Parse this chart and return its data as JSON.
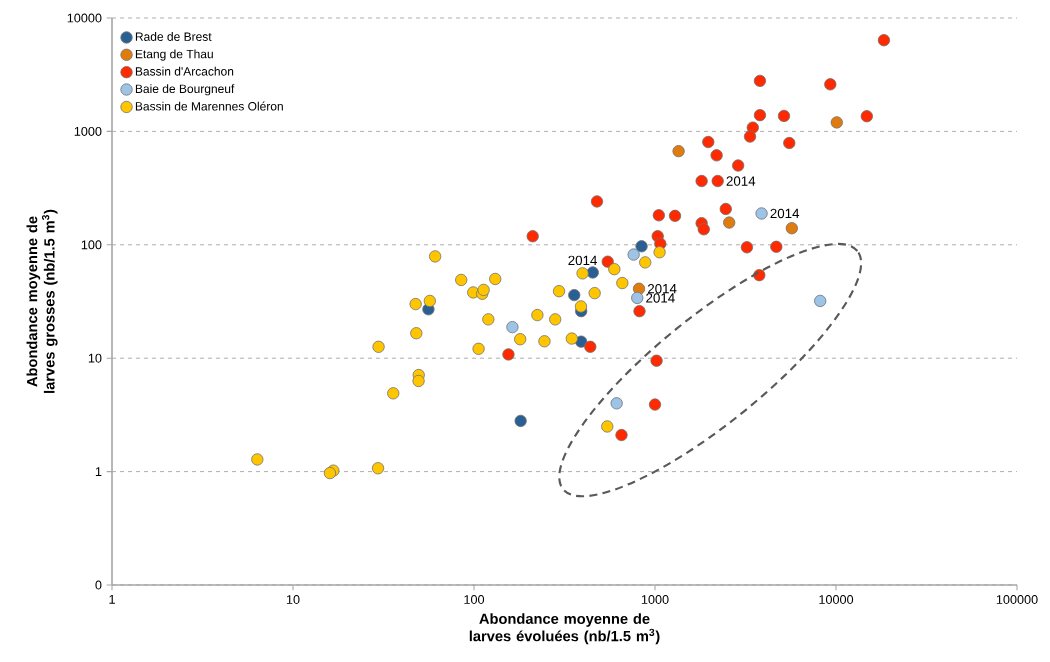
{
  "chart_data": {
    "type": "scatter",
    "xlabel": "Abondance moyenne de larves évoluées (nb/1.5 m$^{3}$)",
    "ylabel": "Abondance moyenne de larves grosses (nb/1.5 m$^{3}$)",
    "log": "xy",
    "grid": "y",
    "legend": "top left",
    "marker": "circle",
    "xlim": [
      1,
      100000
    ],
    "xticks": [
      1,
      10,
      100,
      1000,
      10000,
      100000
    ],
    "ylim": [
      0.1,
      10000
    ],
    "yticks": [
      {
        "value": 0.1,
        "label": "0"
      },
      1,
      10,
      100,
      1000,
      10000
    ],
    "series": [
      {
        "name": "Rade de Brest",
        "color": "#2a5f93",
        "x": [
          56,
          181,
          453,
          358,
          391,
          391,
          843
        ],
        "values": [
          27,
          2.8,
          57,
          36,
          26,
          14,
          97
        ]
      },
      {
        "name": "Etang de Thau",
        "color": "#e07b0f",
        "x": [
          1350,
          816,
          2570,
          5700,
          10100
        ],
        "values": [
          670,
          41,
          157,
          140,
          1200
        ]
      },
      {
        "name": "Bassin d'Arcachon",
        "color": "#ff2a00",
        "x": [
          211,
          155,
          478,
          1050,
          1290,
          1810,
          2220,
          1810,
          1860,
          1035,
          1070,
          548,
          821,
          439,
          1020,
          1000,
          653,
          1970,
          2190,
          18400,
          3800,
          9300,
          3800,
          5160,
          14800,
          3470,
          3350,
          5520,
          2880,
          2460,
          3220,
          4680,
          3770
        ],
        "values": [
          119,
          10.8,
          241,
          182,
          180,
          365,
          365,
          155,
          137,
          119,
          102,
          71,
          26,
          12.6,
          9.5,
          3.9,
          2.1,
          806,
          615,
          6370,
          2790,
          2600,
          1390,
          1370,
          1360,
          1080,
          900,
          790,
          500,
          207,
          95,
          96,
          54
        ]
      },
      {
        "name": "Baie de Bourgneuf",
        "color": "#9dc3e6",
        "x": [
          163,
          762,
          798,
          614,
          3880,
          8180
        ],
        "values": [
          18.8,
          82,
          34,
          4.0,
          189,
          32
        ]
      },
      {
        "name": "Bassin de Marennes Oléron",
        "color": "#ffc600",
        "x": [
          61,
          85,
          99,
          111,
          113,
          131,
          295,
          47.6,
          57,
          48,
          29.7,
          120,
          224,
          281,
          180,
          245,
          106,
          49.5,
          49.4,
          35.8,
          6.35,
          16.7,
          16,
          29.5,
          1060,
          883,
          596,
          398,
          660,
          464,
          390,
          347,
          545
        ],
        "values": [
          79,
          49,
          38,
          37,
          40,
          50,
          39,
          30,
          32,
          16.6,
          12.6,
          22,
          24,
          22,
          14.7,
          14.1,
          12.1,
          7.1,
          6.3,
          4.9,
          1.28,
          1.02,
          0.97,
          1.07,
          86,
          70,
          61,
          56,
          46,
          37.5,
          28.6,
          14.9,
          2.5
        ]
      }
    ],
    "annotations": [
      {
        "text": "2014",
        "x": 398,
        "y": 56
      },
      {
        "text": "2014",
        "x": 816,
        "y": 41
      },
      {
        "text": "2014",
        "x": 798,
        "y": 34
      },
      {
        "text": "2014",
        "x": 2220,
        "y": 365
      },
      {
        "text": "2014",
        "x": 3880,
        "y": 189
      }
    ]
  }
}
